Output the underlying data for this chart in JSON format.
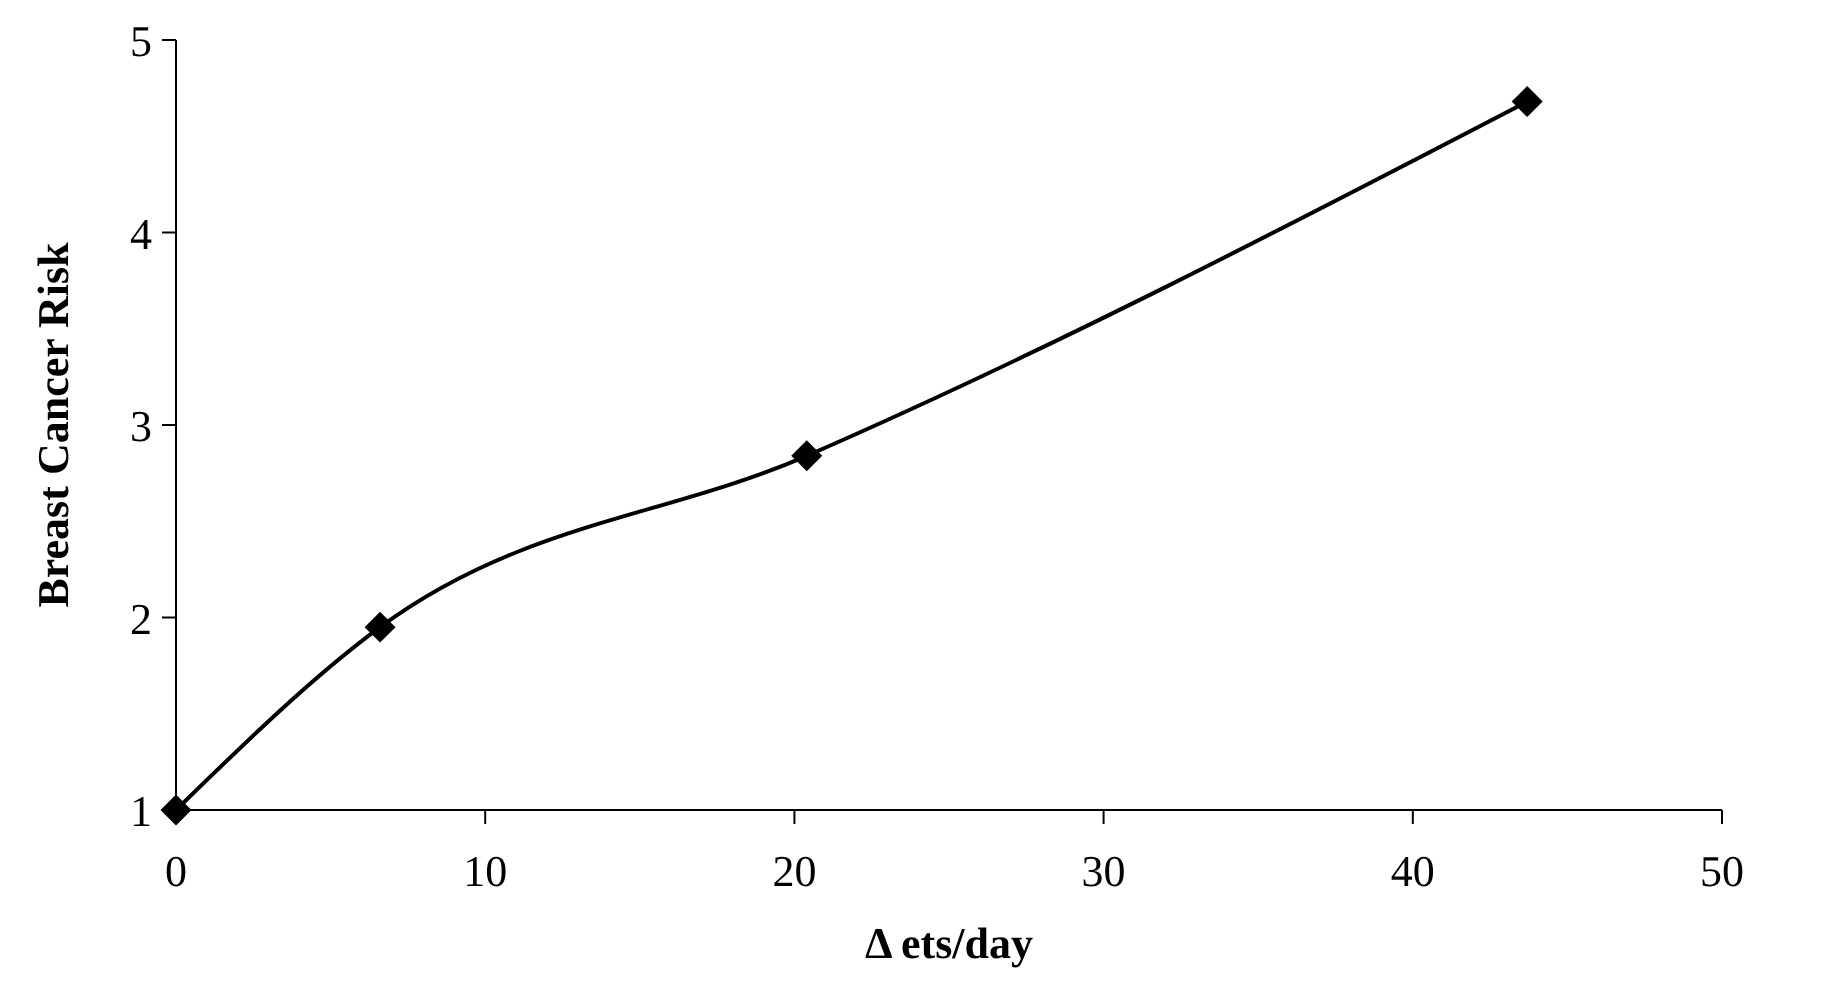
{
  "chart_data": {
    "type": "line",
    "xlabel": "Δ ets/day",
    "ylabel": "Breast Cancer Risk",
    "x": [
      0,
      6.6,
      20.4,
      43.7
    ],
    "series": [
      {
        "color": "#000000",
        "values": [
          1,
          1.95,
          2.84,
          4.68
        ]
      }
    ],
    "xlim": [
      0,
      50
    ],
    "xticks": [
      0,
      10,
      20,
      30,
      40,
      50
    ],
    "ylim": [
      1,
      5
    ],
    "yticks": [
      1,
      2,
      3,
      4,
      5
    ],
    "marker": "diamond",
    "line_style": "solid"
  }
}
